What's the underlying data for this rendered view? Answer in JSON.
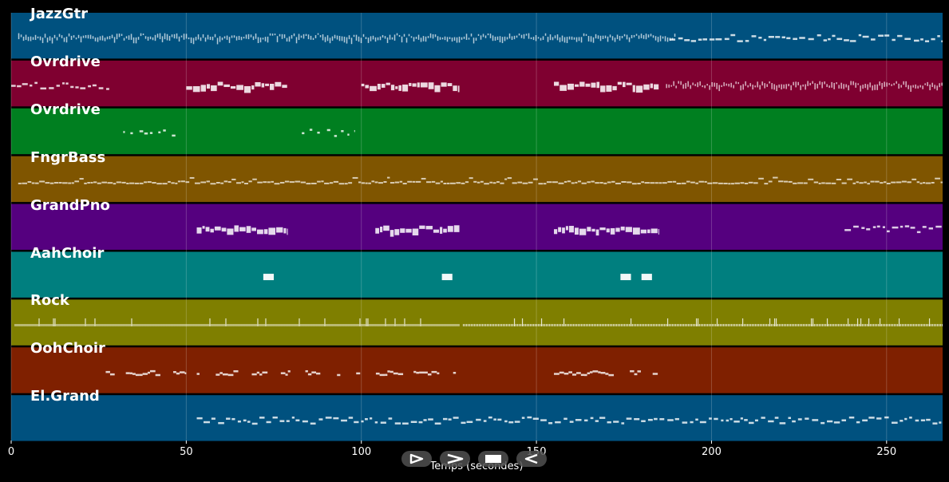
{
  "chart_data": {
    "type": "piano-roll",
    "xlabel": "Temps (secondes)",
    "xlim": [
      0,
      266
    ],
    "xticks": [
      0,
      50,
      100,
      150,
      200,
      250
    ],
    "grid": true,
    "tracks": [
      {
        "name": "JazzGtr",
        "color": "#00517f",
        "segments": [
          [
            2,
            190,
            "dense"
          ],
          [
            188,
            266,
            "melody"
          ]
        ]
      },
      {
        "name": "Ovrdrive",
        "color": "#7f0030",
        "segments": [
          [
            0,
            28,
            "melody"
          ],
          [
            50,
            79,
            "chords"
          ],
          [
            100,
            128,
            "chords"
          ],
          [
            155,
            185,
            "chords"
          ],
          [
            187,
            266,
            "dense"
          ]
        ]
      },
      {
        "name": "Ovrdrive",
        "color": "#007f20",
        "segments": [
          [
            32,
            47,
            "sparse"
          ],
          [
            83,
            98,
            "sparse"
          ]
        ]
      },
      {
        "name": "FngrBass",
        "color": "#7f5500",
        "segments": [
          [
            2,
            266,
            "bass"
          ]
        ]
      },
      {
        "name": "GrandPno",
        "color": "#55007f",
        "segments": [
          [
            53,
            79,
            "chords"
          ],
          [
            104,
            128,
            "chords"
          ],
          [
            155,
            185,
            "chords"
          ],
          [
            238,
            266,
            "melody"
          ]
        ]
      },
      {
        "name": "AahChoir",
        "color": "#007f7f",
        "segments": [
          [
            72,
            75,
            "block"
          ],
          [
            123,
            126,
            "block"
          ],
          [
            174,
            177,
            "block"
          ],
          [
            180,
            183,
            "block"
          ]
        ]
      },
      {
        "name": "Rock",
        "color": "#7f7f00",
        "segments": [
          [
            1,
            128,
            "drums"
          ],
          [
            129,
            266,
            "drums"
          ]
        ]
      },
      {
        "name": "OohChoir",
        "color": "#7f2000",
        "segments": [
          [
            27,
            50,
            "phrases"
          ],
          [
            53,
            127,
            "phrases"
          ],
          [
            155,
            185,
            "phrases"
          ]
        ]
      },
      {
        "name": "El.Grand",
        "color": "#00517f",
        "segments": [
          [
            53,
            266,
            "melody"
          ]
        ]
      }
    ]
  },
  "controls": [
    {
      "name": "play-icon",
      "glyph": "play"
    },
    {
      "name": "forward-icon",
      "glyph": "forward"
    },
    {
      "name": "stop-icon",
      "glyph": "stop"
    },
    {
      "name": "rewind-icon",
      "glyph": "rewind"
    }
  ]
}
